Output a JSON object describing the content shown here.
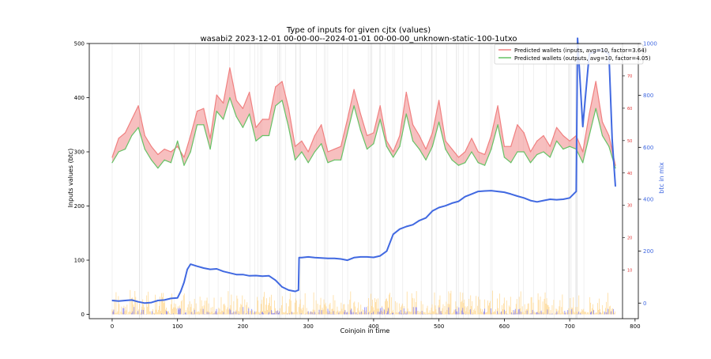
{
  "chart_data": {
    "type": "line",
    "title": "Type of inputs for given cjtx (values)",
    "subtitle": "wasabi2 2023-12-01 00-00-00--2024-01-01 00-00-00_unknown-static-100-1utxo",
    "xlabel": "Coinjoin in time",
    "ylabel": "Inputs values (btc)",
    "ylabel_right": "btc in mix",
    "xlim": [
      -35,
      805
    ],
    "ylim": [
      -8,
      500
    ],
    "ylim_right": [
      -60,
      1000
    ],
    "ylim_right_inner": [
      -5,
      80
    ],
    "xticks": [
      0,
      100,
      200,
      300,
      400,
      500,
      600,
      700,
      800
    ],
    "yticks": [
      0,
      100,
      200,
      300,
      400,
      500
    ],
    "yticks_right": [
      0,
      200,
      400,
      600,
      800,
      1000
    ],
    "yticks_right_inner": [
      10,
      20,
      30,
      40,
      50,
      60,
      70
    ],
    "legend_position": "top-right",
    "grid": false,
    "colors": {
      "inputs": "#f08080",
      "outputs": "#66c266",
      "btc_mix": "#4169e1",
      "fill": "#f08080",
      "bars_low": "#ffd27f",
      "bars_blue": "#6a6aff",
      "vlines": "#c8c8c8",
      "right_axis": "#4169e1",
      "inner_axis": "#e03030"
    },
    "series": [
      {
        "name": "Predicted wallets (inputs, avg=10, factor=3.64)",
        "color": "#f08080",
        "x": [
          0,
          10,
          20,
          30,
          40,
          50,
          60,
          70,
          80,
          90,
          100,
          110,
          120,
          130,
          140,
          150,
          160,
          170,
          180,
          190,
          200,
          210,
          220,
          230,
          240,
          250,
          260,
          270,
          280,
          290,
          300,
          310,
          320,
          330,
          340,
          350,
          360,
          370,
          380,
          390,
          400,
          410,
          420,
          430,
          440,
          450,
          460,
          470,
          480,
          490,
          500,
          510,
          520,
          530,
          540,
          550,
          560,
          570,
          580,
          590,
          600,
          610,
          620,
          630,
          640,
          650,
          660,
          670,
          680,
          690,
          700,
          710,
          720,
          730,
          740,
          750,
          760,
          770
        ],
        "values": [
          290,
          325,
          335,
          360,
          385,
          330,
          310,
          295,
          305,
          300,
          310,
          290,
          330,
          375,
          380,
          325,
          405,
          390,
          455,
          395,
          380,
          410,
          345,
          360,
          360,
          420,
          430,
          380,
          310,
          320,
          300,
          330,
          350,
          300,
          305,
          310,
          360,
          415,
          370,
          330,
          335,
          385,
          320,
          300,
          330,
          410,
          350,
          330,
          305,
          335,
          395,
          320,
          305,
          290,
          300,
          325,
          300,
          295,
          330,
          385,
          310,
          310,
          350,
          335,
          300,
          320,
          330,
          310,
          345,
          330,
          320,
          330,
          300,
          370,
          430,
          355,
          330,
          275
        ],
        "y_axis": "left"
      },
      {
        "name": "Predicted wallets (outputs, avg=10, factor=4.05)",
        "color": "#66c266",
        "x": [
          0,
          10,
          20,
          30,
          40,
          50,
          60,
          70,
          80,
          90,
          100,
          110,
          120,
          130,
          140,
          150,
          160,
          170,
          180,
          190,
          200,
          210,
          220,
          230,
          240,
          250,
          260,
          270,
          280,
          290,
          300,
          310,
          320,
          330,
          340,
          350,
          360,
          370,
          380,
          390,
          400,
          410,
          420,
          430,
          440,
          450,
          460,
          470,
          480,
          490,
          500,
          510,
          520,
          530,
          540,
          550,
          560,
          570,
          580,
          590,
          600,
          610,
          620,
          630,
          640,
          650,
          660,
          670,
          680,
          690,
          700,
          710,
          720,
          730,
          740,
          750,
          760,
          770
        ],
        "values": [
          280,
          300,
          305,
          330,
          345,
          305,
          285,
          270,
          285,
          280,
          320,
          275,
          300,
          350,
          350,
          305,
          375,
          360,
          400,
          365,
          345,
          370,
          320,
          330,
          330,
          385,
          395,
          345,
          285,
          300,
          280,
          300,
          315,
          280,
          285,
          285,
          335,
          385,
          340,
          305,
          315,
          360,
          310,
          290,
          310,
          370,
          320,
          305,
          285,
          310,
          355,
          305,
          285,
          275,
          280,
          300,
          280,
          275,
          305,
          350,
          290,
          280,
          300,
          300,
          280,
          295,
          300,
          290,
          320,
          305,
          310,
          305,
          280,
          330,
          380,
          330,
          310,
          270
        ],
        "y_axis": "left"
      },
      {
        "name": "btc in mix",
        "color": "#4169e1",
        "x": [
          0,
          10,
          20,
          30,
          40,
          50,
          60,
          70,
          80,
          90,
          100,
          105,
          110,
          115,
          120,
          130,
          140,
          150,
          160,
          170,
          180,
          190,
          200,
          210,
          220,
          230,
          240,
          250,
          260,
          270,
          280,
          285,
          286,
          290,
          300,
          310,
          320,
          330,
          340,
          350,
          360,
          370,
          380,
          390,
          400,
          410,
          420,
          430,
          440,
          450,
          460,
          470,
          480,
          490,
          500,
          510,
          520,
          530,
          540,
          550,
          560,
          570,
          580,
          590,
          600,
          610,
          620,
          630,
          640,
          650,
          660,
          670,
          680,
          690,
          700,
          710,
          712,
          720,
          730,
          740,
          750,
          760,
          765,
          770
        ],
        "values": [
          10,
          8,
          10,
          12,
          5,
          0,
          2,
          10,
          12,
          18,
          20,
          45,
          80,
          130,
          150,
          142,
          135,
          130,
          132,
          122,
          116,
          110,
          110,
          105,
          106,
          104,
          105,
          88,
          62,
          50,
          45,
          50,
          175,
          175,
          178,
          175,
          174,
          172,
          172,
          170,
          165,
          175,
          178,
          178,
          176,
          182,
          200,
          265,
          285,
          295,
          302,
          318,
          328,
          355,
          368,
          375,
          385,
          392,
          410,
          420,
          430,
          432,
          433,
          430,
          427,
          420,
          412,
          405,
          395,
          390,
          395,
          400,
          398,
          400,
          405,
          430,
          1020,
          680,
          960,
          970,
          975,
          960,
          630,
          450
        ],
        "y_axis": "right"
      }
    ],
    "bars_note": "dense small-value input bars near baseline (yellow and blue)"
  }
}
